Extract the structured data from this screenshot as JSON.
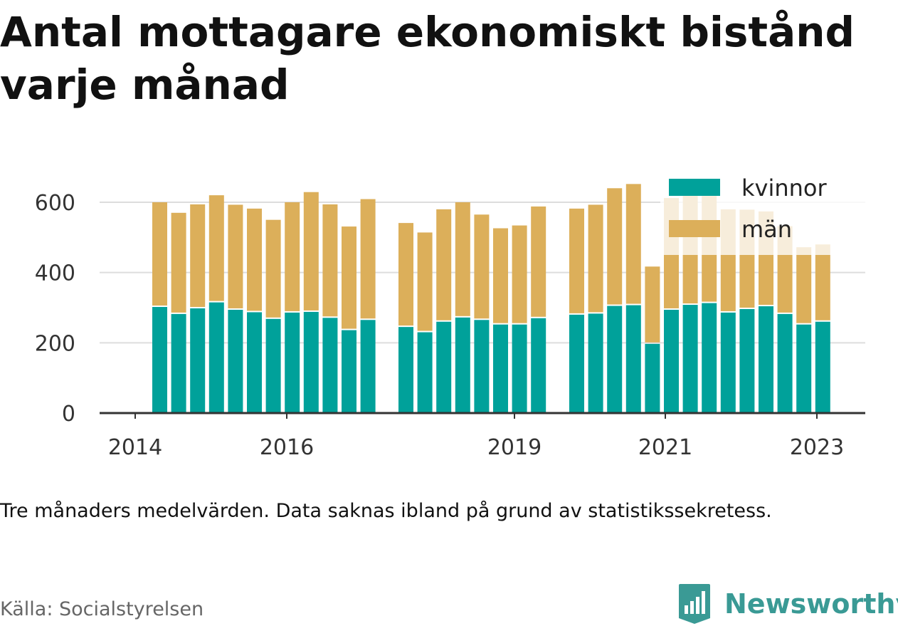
{
  "title": "Antal mottagare ekonomiskt bistånd varje månad",
  "note": "Tre månaders medelvärden. Data saknas ibland på grund av statistikssekretess.",
  "source": "Källa: Socialstyrelsen",
  "brand": "Newsworthy",
  "chart_data": {
    "type": "bar",
    "stacked": true,
    "title": "Antal mottagare ekonomiskt bistånd varje månad",
    "ylim": [
      0,
      660
    ],
    "y_ticks": [
      0,
      200,
      400,
      600
    ],
    "x_ticks": [
      "2014",
      "2016",
      "2019",
      "2021",
      "2023"
    ],
    "grid": true,
    "legend_position": "top-right",
    "colors": {
      "kvinnor": "#00a19a",
      "män": "#dcaf5a"
    },
    "groups": [
      {
        "kvinnor": [
          302,
          282,
          298,
          315,
          294,
          287,
          268,
          286,
          288,
          271,
          236,
          265
        ],
        "män": [
          298,
          288,
          296,
          305,
          299,
          295,
          282,
          314,
          341,
          323,
          295,
          344
        ]
      },
      {
        "kvinnor": [
          245,
          230,
          260,
          272,
          265,
          252,
          252,
          270
        ],
        "män": [
          296,
          284,
          320,
          328,
          300,
          274,
          282,
          318
        ]
      },
      {
        "kvinnor": [
          280,
          283,
          305,
          307,
          197,
          294,
          308,
          313,
          286,
          296,
          304,
          282,
          252,
          260
        ],
        "män": [
          302,
          310,
          335,
          345,
          220,
          318,
          312,
          305,
          294,
          283,
          270,
          250,
          220,
          220
        ]
      }
    ],
    "series": [
      {
        "name": "kvinnor"
      },
      {
        "name": "män"
      }
    ]
  }
}
